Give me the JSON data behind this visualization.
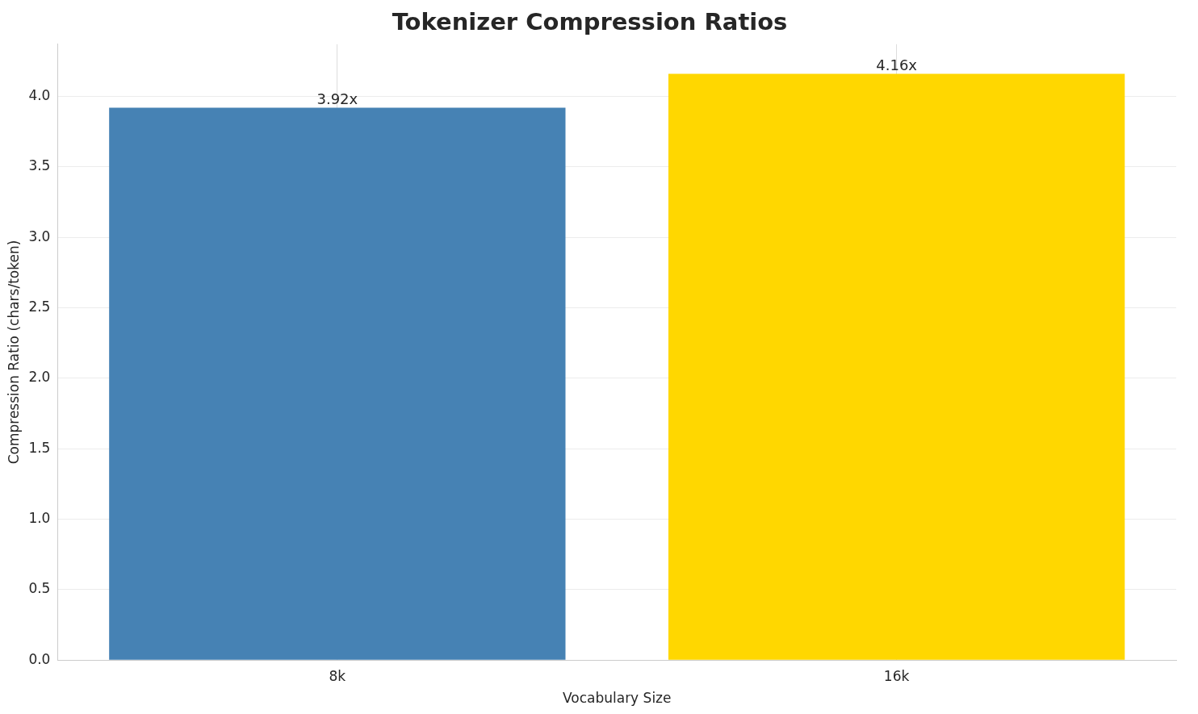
{
  "chart_data": {
    "type": "bar",
    "title": "Tokenizer Compression Ratios",
    "xlabel": "Vocabulary Size",
    "ylabel": "Compression Ratio (chars/token)",
    "categories": [
      "8k",
      "16k"
    ],
    "values": [
      3.92,
      4.16
    ],
    "colors": [
      "#4682b4",
      "#ffd700"
    ],
    "value_labels": [
      "3.92x",
      "4.16x"
    ],
    "ylim": [
      0,
      4.37
    ],
    "yticks": [
      {
        "value": 0,
        "label": "0.0"
      },
      {
        "value": 0.5,
        "label": "0.5"
      },
      {
        "value": 1,
        "label": "1.0"
      },
      {
        "value": 1.5,
        "label": "1.5"
      },
      {
        "value": 2,
        "label": "2.0"
      },
      {
        "value": 2.5,
        "label": "2.5"
      },
      {
        "value": 3,
        "label": "3.0"
      },
      {
        "value": 3.5,
        "label": "3.5"
      },
      {
        "value": 4,
        "label": "4.0"
      }
    ],
    "grid": true,
    "legend": false
  }
}
